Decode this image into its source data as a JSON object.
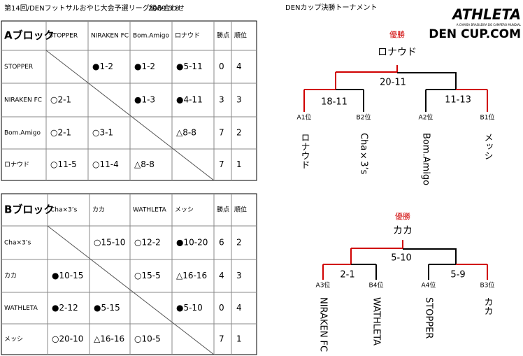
{
  "title": "第14回/DENフットサルおやじ大会予選リーグ組み合わせ",
  "date": "2009.3.8",
  "logo": {
    "brand": "ATHLETA",
    "tagline": "A CAMISA BRASILEIRA DO CAMPEÃO MUNDIAL",
    "site": "DEN CUP.COM"
  },
  "tables": [
    {
      "header": [
        "Aブロック",
        "STOPPER",
        "NIRAKEN FC",
        "Bom.Amigo",
        "ロナウド",
        "勝点",
        "順位"
      ],
      "rows": [
        {
          "team": "STOPPER",
          "cells": [
            null,
            "●1-2",
            "●1-2",
            "●5-11",
            0,
            4
          ]
        },
        {
          "team": "NIRAKEN FC",
          "cells": [
            "○2-1",
            null,
            "●1-3",
            "●4-11",
            3,
            3
          ]
        },
        {
          "team": "Bom.Amigo",
          "cells": [
            "○2-1",
            "○3-1",
            null,
            "△8-8",
            7,
            2
          ]
        },
        {
          "team": "ロナウド",
          "cells": [
            "○11-5",
            "○11-4",
            "△8-8",
            null,
            7,
            1
          ]
        }
      ]
    },
    {
      "header": [
        "Bブロック",
        "Cha×3’s",
        "カカ",
        "WATHLETA",
        "メッシ",
        "勝点",
        "順位"
      ],
      "rows": [
        {
          "team": "Cha×3’s",
          "cells": [
            null,
            "○15-10",
            "○12-2",
            "●10-20",
            6,
            2
          ]
        },
        {
          "team": "カカ",
          "cells": [
            "●10-15",
            null,
            "○15-5",
            "△16-16",
            4,
            3
          ]
        },
        {
          "team": "WATHLETA",
          "cells": [
            "●2-12",
            "●5-15",
            null,
            "●5-10",
            0,
            4
          ]
        },
        {
          "team": "メッシ",
          "cells": [
            "○20-10",
            "△16-16",
            "○10-5",
            null,
            7,
            1
          ]
        }
      ]
    }
  ],
  "tournament": {
    "title": "DENカップ決勝トーナメント",
    "brackets": [
      {
        "winner_label": "優勝",
        "winner": "ロナウド",
        "final_score": "20-11",
        "matches": [
          {
            "score": "18-11",
            "slots": [
              {
                "seed": "A1位",
                "team": "ロナウド"
              },
              {
                "seed": "B2位",
                "team": "Cha×3’s"
              }
            ]
          },
          {
            "score": "11-13",
            "slots": [
              {
                "seed": "A2位",
                "team": "Bom.Amigo"
              },
              {
                "seed": "B1位",
                "team": "メッシ"
              }
            ]
          }
        ]
      },
      {
        "winner_label": "優勝",
        "winner": "カカ",
        "final_score": "5-10",
        "matches": [
          {
            "score": "2-1",
            "slots": [
              {
                "seed": "A3位",
                "team": "NIRAKEN FC"
              },
              {
                "seed": "B4位",
                "team": "WATHLETA"
              }
            ]
          },
          {
            "score": "5-9",
            "slots": [
              {
                "seed": "A4位",
                "team": "STOPPER"
              },
              {
                "seed": "B3位",
                "team": "カカ"
              }
            ]
          }
        ]
      }
    ]
  }
}
